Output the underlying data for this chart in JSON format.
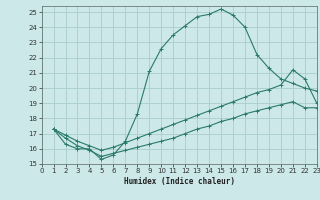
{
  "bg_color": "#cce8e8",
  "grid_color": "#aacccc",
  "line_color": "#2a7a6a",
  "xlabel": "Humidex (Indice chaleur)",
  "xlim": [
    0,
    23
  ],
  "ylim": [
    15,
    25.4
  ],
  "yticks": [
    15,
    16,
    17,
    18,
    19,
    20,
    21,
    22,
    23,
    24,
    25
  ],
  "xticks": [
    0,
    1,
    2,
    3,
    4,
    5,
    6,
    7,
    8,
    9,
    10,
    11,
    12,
    13,
    14,
    15,
    16,
    17,
    18,
    19,
    20,
    21,
    22,
    23
  ],
  "curve1_x": [
    1,
    2,
    3,
    4,
    5,
    6,
    7,
    8,
    9,
    10,
    11,
    12,
    13,
    14,
    15,
    16,
    17,
    18,
    19,
    20,
    21,
    22,
    23
  ],
  "curve1_y": [
    17.3,
    16.3,
    16.0,
    16.0,
    15.3,
    15.6,
    16.5,
    18.3,
    21.1,
    22.6,
    23.5,
    24.1,
    24.7,
    24.85,
    25.2,
    24.8,
    24.0,
    22.2,
    21.3,
    20.6,
    20.3,
    20.0,
    19.8
  ],
  "curve2_x": [
    1,
    2,
    3,
    4,
    5,
    6,
    7,
    8,
    9,
    10,
    11,
    12,
    13,
    14,
    15,
    16,
    17,
    18,
    19,
    20,
    21,
    22,
    23
  ],
  "curve2_y": [
    17.3,
    16.9,
    16.5,
    16.2,
    15.9,
    16.1,
    16.4,
    16.7,
    17.0,
    17.3,
    17.6,
    17.9,
    18.2,
    18.5,
    18.8,
    19.1,
    19.4,
    19.7,
    19.9,
    20.2,
    21.2,
    20.6,
    19.0
  ],
  "curve3_x": [
    1,
    2,
    3,
    4,
    5,
    6,
    7,
    8,
    9,
    10,
    11,
    12,
    13,
    14,
    15,
    16,
    17,
    18,
    19,
    20,
    21,
    22,
    23
  ],
  "curve3_y": [
    17.3,
    16.7,
    16.2,
    15.9,
    15.5,
    15.7,
    15.9,
    16.1,
    16.3,
    16.5,
    16.7,
    17.0,
    17.3,
    17.5,
    17.8,
    18.0,
    18.3,
    18.5,
    18.7,
    18.9,
    19.1,
    18.7,
    18.7
  ]
}
